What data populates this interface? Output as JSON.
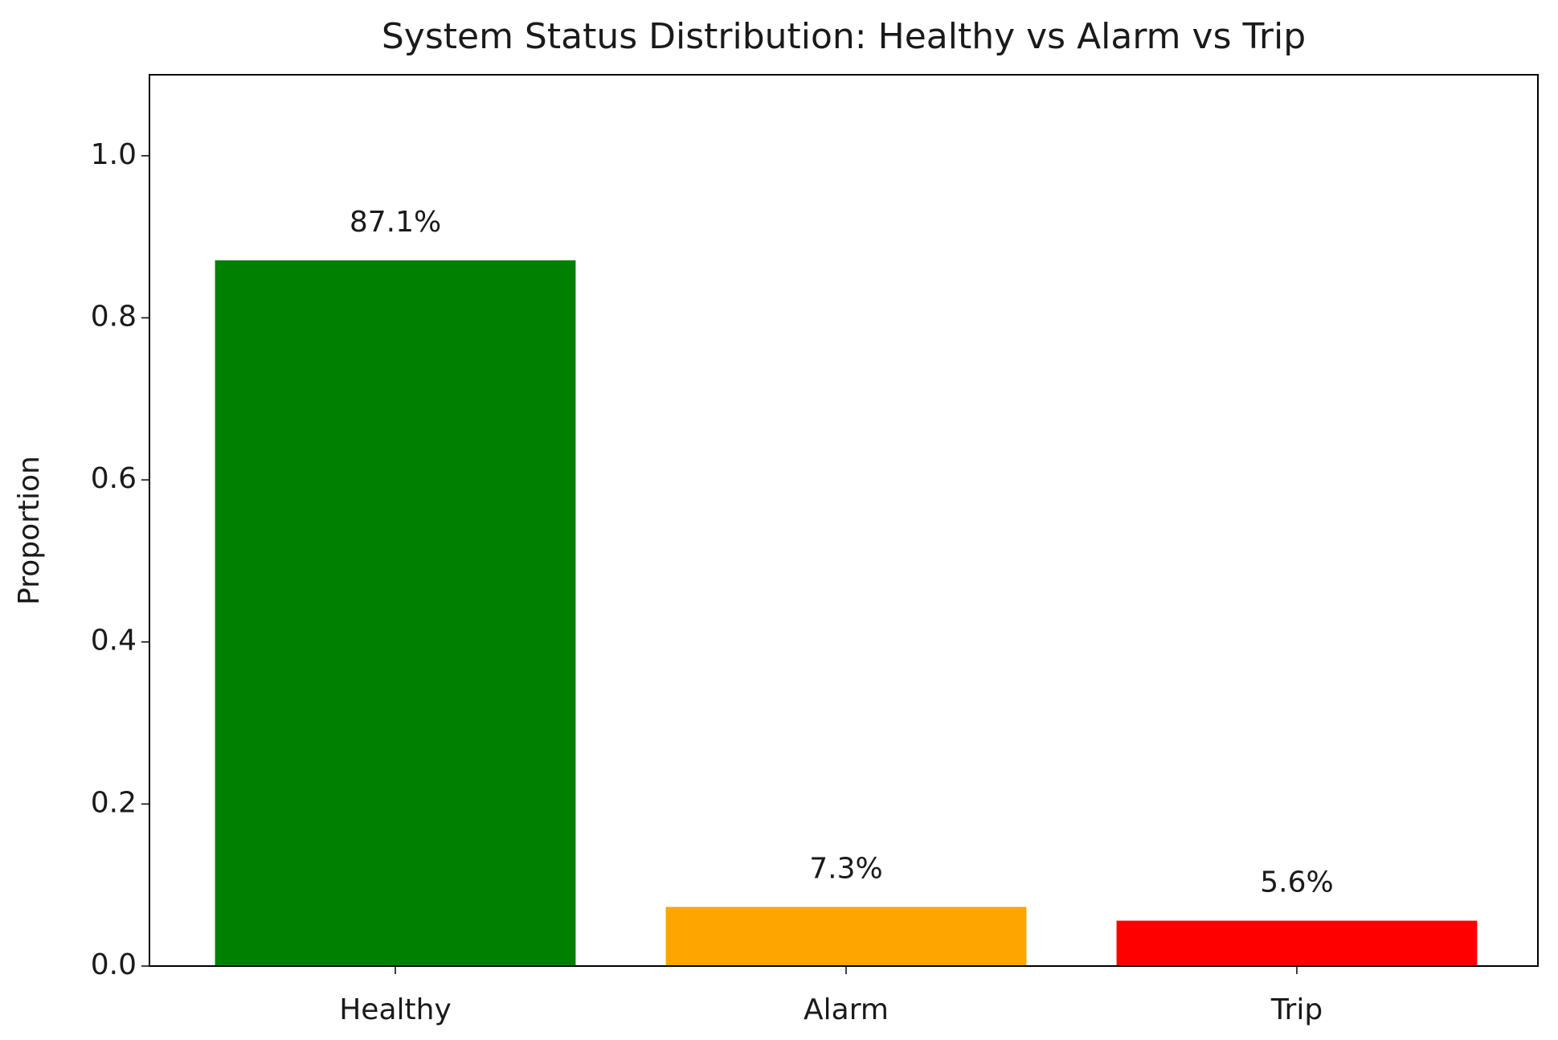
{
  "chart_data": {
    "type": "bar",
    "title": "System Status Distribution: Healthy vs Alarm vs Trip",
    "y_label": "Proportion",
    "categories": [
      "Healthy",
      "Alarm",
      "Trip"
    ],
    "values": [
      0.871,
      0.073,
      0.056
    ],
    "value_labels": [
      "87.1%",
      "7.3%",
      "5.6%"
    ],
    "colors": [
      "#008000",
      "#ffa500",
      "#ff0000"
    ],
    "ylim": [
      0,
      1.1
    ],
    "yticks": [
      {
        "value": 0,
        "label": "0.0"
      },
      0.2,
      0.4,
      0.6,
      0.8,
      {
        "value": 1,
        "label": "1.0"
      }
    ],
    "grid": false
  }
}
